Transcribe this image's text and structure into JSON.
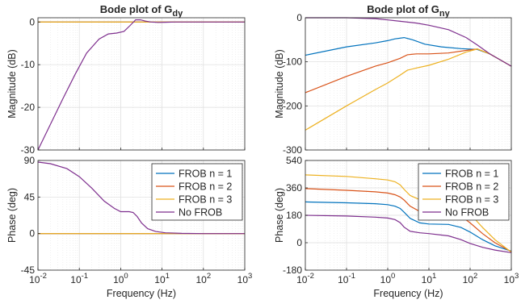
{
  "figure": {
    "xlabel": "Frequency (Hz)",
    "legend_entries": [
      "FROB n = 1",
      "FROB n = 2",
      "FROB n = 3",
      "No FROB"
    ],
    "colors": {
      "FROB n = 1": "#0072BD",
      "FROB n = 2": "#D95319",
      "FROB n = 3": "#EDB120",
      "No FROB": "#7E2F8E"
    }
  },
  "chart_data": [
    {
      "id": "gdy_mag",
      "type": "line",
      "title": "Bode plot of G",
      "title_sub": "dy",
      "xlabel": "",
      "ylabel": "Magnitude (dB)",
      "xscale": "log",
      "xlim": [
        0.01,
        1000
      ],
      "ylim": [
        -30,
        1
      ],
      "x_ticks": [
        "10^-2",
        "10^-1",
        "10^0",
        "10^1",
        "10^2",
        "10^3"
      ],
      "y_ticks": [
        -30,
        -20,
        -10,
        0
      ],
      "grid": true,
      "series": [
        {
          "name": "FROB n = 1",
          "x": [
            0.01,
            1000
          ],
          "y": [
            0,
            0
          ]
        },
        {
          "name": "FROB n = 2",
          "x": [
            0.01,
            1000
          ],
          "y": [
            0,
            0
          ]
        },
        {
          "name": "FROB n = 3",
          "x": [
            0.01,
            1000
          ],
          "y": [
            0,
            0
          ]
        },
        {
          "name": "No FROB",
          "x": [
            0.01,
            0.02,
            0.04,
            0.08,
            0.15,
            0.3,
            0.5,
            0.8,
            1.2,
            1.7,
            2.3,
            3,
            4,
            5.5,
            8,
            12,
            20,
            50,
            1000
          ],
          "y": [
            -30,
            -24,
            -18,
            -12.2,
            -7.3,
            -4.0,
            -2.8,
            -2.6,
            -2.2,
            -0.8,
            0.5,
            0.5,
            0.2,
            0.0,
            -0.1,
            -0.05,
            0,
            0,
            0
          ]
        }
      ]
    },
    {
      "id": "gny_mag",
      "type": "line",
      "title": "Bode plot of G",
      "title_sub": "ny",
      "xlabel": "",
      "ylabel": "Magnitude (dB)",
      "xscale": "log",
      "xlim": [
        0.01,
        1000
      ],
      "ylim": [
        -300,
        0
      ],
      "x_ticks": [
        "10^-2",
        "10^-1",
        "10^0",
        "10^1",
        "10^2",
        "10^3"
      ],
      "y_ticks": [
        -300,
        -200,
        -100,
        0
      ],
      "grid": true,
      "series": [
        {
          "name": "FROB n = 1",
          "x": [
            0.01,
            0.1,
            0.5,
            1,
            1.5,
            2.5,
            4,
            8,
            20,
            60,
            150,
            300,
            600,
            1000
          ],
          "y": [
            -85,
            -66,
            -57,
            -52,
            -48,
            -45,
            -50,
            -60,
            -66,
            -70,
            -72,
            -82,
            -98,
            -110
          ]
        },
        {
          "name": "FROB n = 2",
          "x": [
            0.01,
            0.1,
            0.5,
            1,
            2,
            3,
            5,
            10,
            30,
            80,
            150,
            300,
            600,
            1000
          ],
          "y": [
            -170,
            -133,
            -110,
            -102,
            -92,
            -84,
            -82,
            -82,
            -80,
            -74,
            -71,
            -82,
            -98,
            -110
          ]
        },
        {
          "name": "FROB n = 3",
          "x": [
            0.01,
            0.1,
            0.5,
            1,
            2,
            3,
            5,
            10,
            30,
            80,
            150,
            300,
            600,
            1000
          ],
          "y": [
            -255,
            -200,
            -163,
            -148,
            -130,
            -119,
            -114,
            -108,
            -94,
            -78,
            -71,
            -82,
            -98,
            -110
          ]
        },
        {
          "name": "No FROB",
          "x": [
            0.01,
            0.1,
            0.5,
            1,
            2,
            5,
            10,
            30,
            80,
            150,
            300,
            600,
            1000
          ],
          "y": [
            0,
            0,
            -2,
            -5,
            -8,
            -12,
            -17,
            -27,
            -45,
            -62,
            -82,
            -98,
            -110
          ]
        }
      ]
    },
    {
      "id": "gdy_phase",
      "type": "line",
      "title": "",
      "xlabel": "Frequency (Hz)",
      "ylabel": "Phase (deg)",
      "xscale": "log",
      "xlim": [
        0.01,
        1000
      ],
      "ylim": [
        -45,
        90
      ],
      "x_ticks": [
        "10^-2",
        "10^-1",
        "10^0",
        "10^1",
        "10^2",
        "10^3"
      ],
      "y_ticks": [
        -45,
        0,
        45,
        90
      ],
      "grid": true,
      "legend": "top-right",
      "series": [
        {
          "name": "FROB n = 1",
          "x": [
            0.01,
            1000
          ],
          "y": [
            0,
            0
          ]
        },
        {
          "name": "FROB n = 2",
          "x": [
            0.01,
            1000
          ],
          "y": [
            0,
            0
          ]
        },
        {
          "name": "FROB n = 3",
          "x": [
            0.01,
            1000
          ],
          "y": [
            0,
            0
          ]
        },
        {
          "name": "No FROB",
          "x": [
            0.01,
            0.02,
            0.05,
            0.1,
            0.2,
            0.4,
            0.7,
            1.0,
            1.3,
            1.6,
            2.0,
            2.5,
            3.2,
            4.5,
            7,
            12,
            30,
            100,
            1000
          ],
          "y": [
            88,
            86,
            80,
            70,
            56,
            40,
            31,
            27,
            27,
            27,
            26,
            21,
            13,
            6,
            2.5,
            1.0,
            0.3,
            0,
            0
          ]
        }
      ]
    },
    {
      "id": "gny_phase",
      "type": "line",
      "title": "",
      "xlabel": "Frequency (Hz)",
      "ylabel": "Phase (deg)",
      "xscale": "log",
      "xlim": [
        0.01,
        1000
      ],
      "ylim": [
        -180,
        540
      ],
      "x_ticks": [
        "10^-2",
        "10^-1",
        "10^0",
        "10^1",
        "10^2",
        "10^3"
      ],
      "y_ticks": [
        -180,
        0,
        180,
        360,
        540
      ],
      "grid": true,
      "legend": "top-right",
      "series": [
        {
          "name": "FROB n = 1",
          "x": [
            0.01,
            0.1,
            0.5,
            1,
            1.5,
            2,
            2.5,
            3.5,
            6,
            10,
            30,
            60,
            100,
            200,
            400,
            1000
          ],
          "y": [
            268,
            262,
            256,
            250,
            240,
            225,
            200,
            160,
            130,
            123,
            120,
            100,
            70,
            20,
            -20,
            -55
          ]
        },
        {
          "name": "FROB n = 2",
          "x": [
            0.01,
            0.1,
            0.5,
            1,
            1.5,
            2,
            2.5,
            3.5,
            6,
            10,
            30,
            60,
            100,
            200,
            400,
            1000
          ],
          "y": [
            355,
            344,
            334,
            326,
            315,
            300,
            280,
            240,
            205,
            200,
            195,
            175,
            130,
            60,
            0,
            -58
          ]
        },
        {
          "name": "FROB n = 3",
          "x": [
            0.01,
            0.1,
            0.5,
            1,
            1.5,
            2,
            2.5,
            3.5,
            6,
            10,
            30,
            60,
            100,
            200,
            400,
            1000
          ],
          "y": [
            445,
            435,
            420,
            412,
            400,
            380,
            350,
            310,
            282,
            280,
            275,
            250,
            190,
            100,
            20,
            -62
          ]
        },
        {
          "name": "No FROB",
          "x": [
            0.01,
            0.1,
            0.5,
            1,
            1.5,
            2,
            2.5,
            3.5,
            6,
            10,
            30,
            60,
            100,
            200,
            400,
            1000
          ],
          "y": [
            180,
            175,
            168,
            162,
            152,
            132,
            102,
            75,
            65,
            60,
            45,
            20,
            -5,
            -30,
            -48,
            -65
          ]
        }
      ]
    }
  ]
}
